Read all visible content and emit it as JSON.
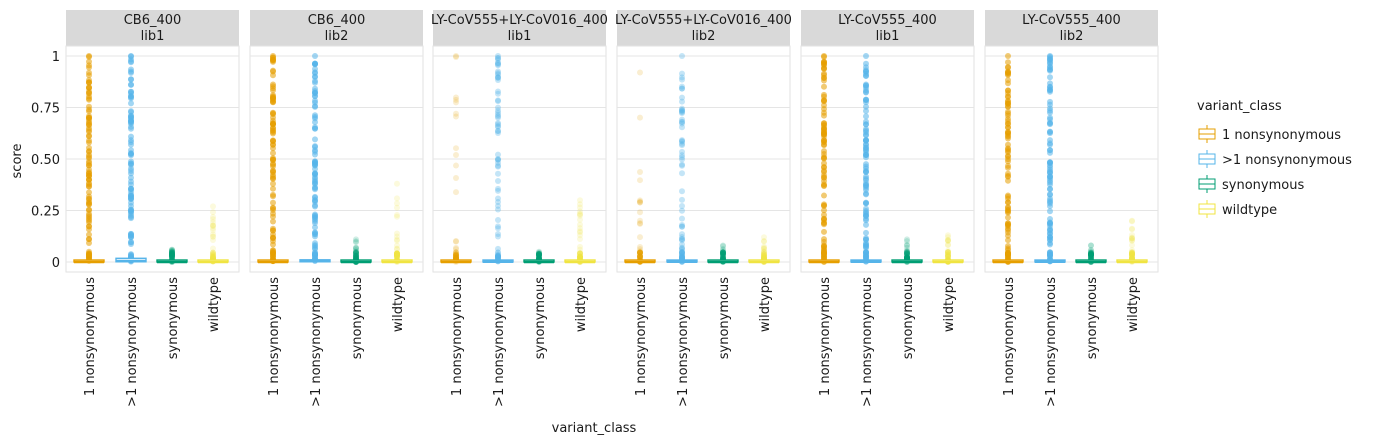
{
  "chart_data": {
    "type": "box",
    "xlabel": "variant_class",
    "ylabel": "score",
    "ylim": [
      -0.04,
      1.1
    ],
    "yticks": [
      0,
      0.25,
      0.5,
      0.75,
      1
    ],
    "ytick_labels": [
      "0",
      "0.25",
      "0.50",
      "0.75",
      "1"
    ],
    "grid": true,
    "legend": {
      "title": "variant_class",
      "placement": "right",
      "entries": [
        "1 nonsynonymous",
        ">1 nonsynonymous",
        "synonymous",
        "wildtype"
      ]
    },
    "categories": [
      "1 nonsynonymous",
      ">1 nonsynonymous",
      "synonymous",
      "wildtype"
    ],
    "colors": {
      "1 nonsynonymous": "#E69F00",
      ">1 nonsynonymous": "#56B4E9",
      "synonymous": "#009E73",
      "wildtype": "#F0E442"
    },
    "facets": [
      {
        "line1": "CB6_400",
        "line2": "lib1",
        "groups": [
          {
            "name": "1 nonsynonymous",
            "q1": 0,
            "median": 0,
            "q3": 0.004,
            "outlier_max": 1.0,
            "density": "high"
          },
          {
            "name": ">1 nonsynonymous",
            "q1": 0.001,
            "median": 0.005,
            "q3": 0.018,
            "outlier_max": 1.0,
            "density": "high"
          },
          {
            "name": "synonymous",
            "q1": 0,
            "median": 0,
            "q3": 0.003,
            "outlier_max": 0.06,
            "density": "low"
          },
          {
            "name": "wildtype",
            "q1": 0,
            "median": 0,
            "q3": 0.004,
            "outlier_max": 0.27,
            "density": "low"
          }
        ]
      },
      {
        "line1": "CB6_400",
        "line2": "lib2",
        "groups": [
          {
            "name": "1 nonsynonymous",
            "q1": 0,
            "median": 0,
            "q3": 0.005,
            "outlier_max": 1.0,
            "density": "high"
          },
          {
            "name": ">1 nonsynonymous",
            "q1": 0.001,
            "median": 0.004,
            "q3": 0.01,
            "outlier_max": 1.0,
            "density": "high"
          },
          {
            "name": "synonymous",
            "q1": 0,
            "median": 0,
            "q3": 0.003,
            "outlier_max": 0.11,
            "density": "low"
          },
          {
            "name": "wildtype",
            "q1": 0,
            "median": 0,
            "q3": 0.004,
            "outlier_max": 0.38,
            "density": "low"
          }
        ]
      },
      {
        "line1": "LY-CoV555+LY-CoV016_400",
        "line2": "lib1",
        "groups": [
          {
            "name": "1 nonsynonymous",
            "q1": 0,
            "median": 0,
            "q3": 0.003,
            "outlier_max": 1.0,
            "density": "low"
          },
          {
            "name": ">1 nonsynonymous",
            "q1": 0,
            "median": 0.001,
            "q3": 0.004,
            "outlier_max": 1.0,
            "density": "mid"
          },
          {
            "name": "synonymous",
            "q1": 0,
            "median": 0,
            "q3": 0.002,
            "outlier_max": 0.05,
            "density": "low"
          },
          {
            "name": "wildtype",
            "q1": 0,
            "median": 0,
            "q3": 0.003,
            "outlier_max": 0.3,
            "density": "low"
          }
        ]
      },
      {
        "line1": "LY-CoV555+LY-CoV016_400",
        "line2": "lib2",
        "groups": [
          {
            "name": "1 nonsynonymous",
            "q1": 0,
            "median": 0,
            "q3": 0.003,
            "outlier_max": 0.92,
            "density": "low"
          },
          {
            "name": ">1 nonsynonymous",
            "q1": 0,
            "median": 0.001,
            "q3": 0.004,
            "outlier_max": 1.0,
            "density": "mid"
          },
          {
            "name": "synonymous",
            "q1": 0,
            "median": 0,
            "q3": 0.002,
            "outlier_max": 0.08,
            "density": "low"
          },
          {
            "name": "wildtype",
            "q1": 0,
            "median": 0,
            "q3": 0.003,
            "outlier_max": 0.12,
            "density": "low"
          }
        ]
      },
      {
        "line1": "LY-CoV555_400",
        "line2": "lib1",
        "groups": [
          {
            "name": "1 nonsynonymous",
            "q1": 0,
            "median": 0,
            "q3": 0.003,
            "outlier_max": 1.0,
            "density": "high"
          },
          {
            "name": ">1 nonsynonymous",
            "q1": 0,
            "median": 0.001,
            "q3": 0.004,
            "outlier_max": 1.0,
            "density": "high"
          },
          {
            "name": "synonymous",
            "q1": 0,
            "median": 0,
            "q3": 0.002,
            "outlier_max": 0.11,
            "density": "low"
          },
          {
            "name": "wildtype",
            "q1": 0,
            "median": 0,
            "q3": 0.003,
            "outlier_max": 0.13,
            "density": "low"
          }
        ]
      },
      {
        "line1": "LY-CoV555_400",
        "line2": "lib2",
        "groups": [
          {
            "name": "1 nonsynonymous",
            "q1": 0,
            "median": 0,
            "q3": 0.003,
            "outlier_max": 1.0,
            "density": "high"
          },
          {
            "name": ">1 nonsynonymous",
            "q1": 0,
            "median": 0.001,
            "q3": 0.004,
            "outlier_max": 1.0,
            "density": "high"
          },
          {
            "name": "synonymous",
            "q1": 0,
            "median": 0,
            "q3": 0.002,
            "outlier_max": 0.08,
            "density": "low"
          },
          {
            "name": "wildtype",
            "q1": 0,
            "median": 0,
            "q3": 0.003,
            "outlier_max": 0.2,
            "density": "low"
          }
        ]
      }
    ]
  }
}
